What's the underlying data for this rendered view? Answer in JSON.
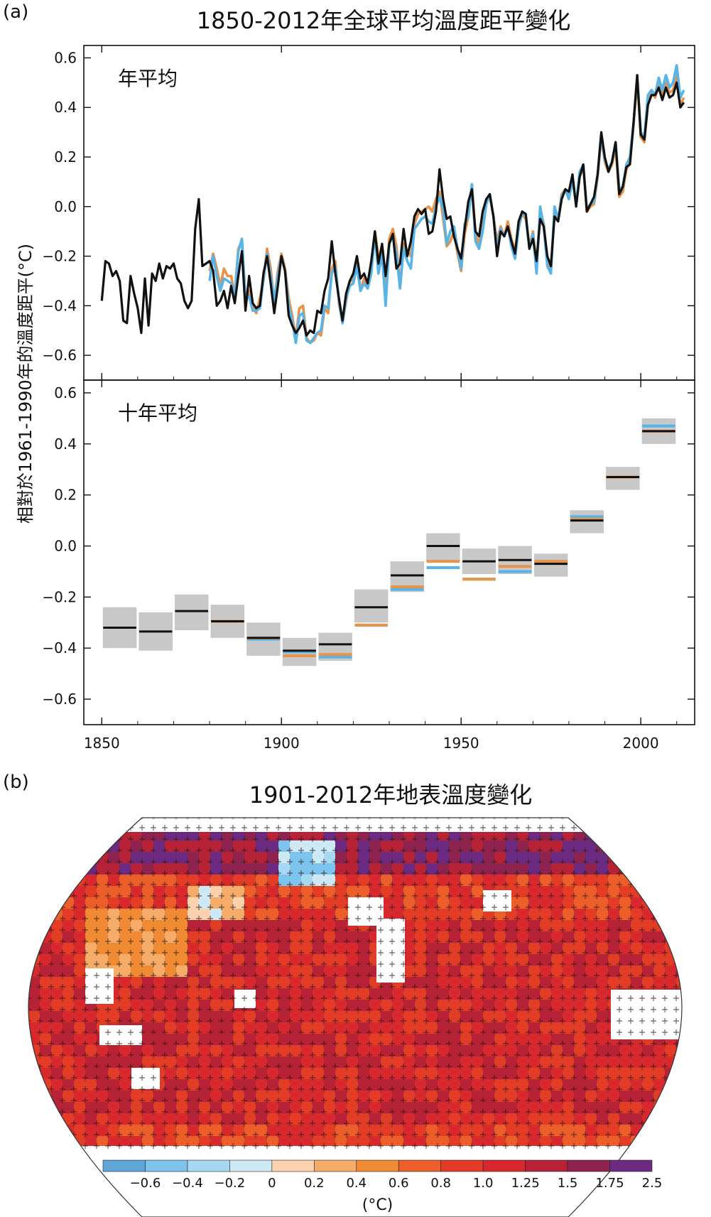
{
  "panel_a": {
    "label": "(a)",
    "title": "1850-2012年全球平均溫度距平變化",
    "ylabel": "相對於1961-1990年的溫度距平(°C)"
  },
  "panel_b": {
    "label": "(b)",
    "title": "1901-2012年地表溫度變化"
  },
  "colors": {
    "black": "#111111",
    "blue": "#56b4e9",
    "orange": "#e8924a",
    "gray_box": "#c8c8c8"
  },
  "chart_data": [
    {
      "type": "line",
      "subtitle": "年平均",
      "xlim": [
        1845,
        2015
      ],
      "ylim": [
        -0.7,
        0.65
      ],
      "xticks": [
        1850,
        1900,
        1950,
        2000
      ],
      "yticks": [
        -0.6,
        -0.4,
        -0.2,
        0.0,
        0.2,
        0.4,
        0.6
      ],
      "ytick_labels": [
        "−0.6",
        "−0.4",
        "−0.2",
        "0.0",
        "0.2",
        "0.4",
        "0.6"
      ],
      "series": [
        {
          "color": "#111111",
          "x_start": 1850,
          "values": [
            -0.38,
            -0.22,
            -0.23,
            -0.28,
            -0.26,
            -0.3,
            -0.46,
            -0.47,
            -0.28,
            -0.35,
            -0.41,
            -0.51,
            -0.29,
            -0.48,
            -0.27,
            -0.3,
            -0.23,
            -0.29,
            -0.24,
            -0.25,
            -0.23,
            -0.29,
            -0.31,
            -0.38,
            -0.41,
            -0.38,
            -0.09,
            0.03,
            -0.24,
            -0.23,
            -0.22,
            -0.26,
            -0.4,
            -0.38,
            -0.34,
            -0.41,
            -0.32,
            -0.39,
            -0.28,
            -0.18,
            -0.42,
            -0.28,
            -0.39,
            -0.41,
            -0.4,
            -0.27,
            -0.2,
            -0.31,
            -0.43,
            -0.32,
            -0.2,
            -0.26,
            -0.44,
            -0.48,
            -0.51,
            -0.49,
            -0.46,
            -0.52,
            -0.5,
            -0.51,
            -0.42,
            -0.43,
            -0.34,
            -0.29,
            -0.14,
            -0.27,
            -0.37,
            -0.46,
            -0.35,
            -0.3,
            -0.27,
            -0.2,
            -0.29,
            -0.27,
            -0.31,
            -0.22,
            -0.1,
            -0.23,
            -0.15,
            -0.28,
            -0.15,
            -0.11,
            -0.25,
            -0.23,
            -0.09,
            -0.2,
            -0.14,
            -0.04,
            -0.01,
            -0.03,
            -0.01,
            -0.11,
            -0.1,
            -0.02,
            0.15,
            0.03,
            -0.05,
            -0.04,
            -0.12,
            -0.17,
            -0.21,
            -0.09,
            0.02,
            0.07,
            -0.1,
            -0.12,
            -0.02,
            0.03,
            0.05,
            -0.04,
            -0.2,
            -0.1,
            -0.12,
            -0.08,
            -0.14,
            -0.19,
            -0.06,
            -0.02,
            -0.03,
            -0.17,
            -0.13,
            -0.22,
            -0.05,
            -0.08,
            -0.2,
            -0.24,
            -0.04,
            -0.06,
            0.03,
            0.07,
            0.06,
            0.13,
            0.0,
            0.12,
            0.17,
            -0.02,
            0.01,
            0.04,
            0.13,
            0.3,
            0.2,
            0.14,
            0.18,
            0.26,
            0.05,
            0.08,
            0.16,
            0.17,
            0.34,
            0.53,
            0.29,
            0.27,
            0.41,
            0.45,
            0.45,
            0.48,
            0.43,
            0.48,
            0.44,
            0.45,
            0.5,
            0.4,
            0.42
          ]
        },
        {
          "color": "#56b4e9",
          "x_start": 1880,
          "values": [
            -0.3,
            -0.2,
            -0.28,
            -0.34,
            -0.29,
            -0.3,
            -0.31,
            -0.36,
            -0.18,
            -0.13,
            -0.38,
            -0.36,
            -0.42,
            -0.42,
            -0.41,
            -0.29,
            -0.19,
            -0.28,
            -0.38,
            -0.28,
            -0.2,
            -0.26,
            -0.4,
            -0.46,
            -0.55,
            -0.44,
            -0.43,
            -0.54,
            -0.55,
            -0.53,
            -0.51,
            -0.5,
            -0.4,
            -0.41,
            -0.27,
            -0.24,
            -0.38,
            -0.47,
            -0.37,
            -0.32,
            -0.31,
            -0.24,
            -0.34,
            -0.31,
            -0.33,
            -0.27,
            -0.11,
            -0.27,
            -0.19,
            -0.4,
            -0.15,
            -0.12,
            -0.19,
            -0.33,
            -0.17,
            -0.22,
            -0.25,
            -0.09,
            -0.07,
            -0.05,
            -0.04,
            -0.06,
            -0.07,
            0.0,
            0.04,
            -0.01,
            -0.15,
            -0.1,
            -0.08,
            -0.17,
            -0.25,
            -0.07,
            -0.04,
            0.09,
            -0.14,
            -0.17,
            -0.1,
            0.01,
            0.05,
            -0.04,
            -0.17,
            -0.09,
            -0.12,
            -0.08,
            -0.16,
            -0.21,
            -0.09,
            -0.02,
            -0.04,
            -0.17,
            -0.11,
            -0.27,
            0.0,
            -0.08,
            -0.24,
            -0.27,
            0.0,
            -0.05,
            0.04,
            0.07,
            0.03,
            0.11,
            0.01,
            0.14,
            0.17,
            -0.01,
            0.01,
            0.02,
            0.13,
            0.29,
            0.19,
            0.15,
            0.18,
            0.26,
            0.07,
            0.08,
            0.17,
            0.2,
            0.34,
            0.53,
            0.3,
            0.28,
            0.45,
            0.47,
            0.45,
            0.52,
            0.47,
            0.53,
            0.48,
            0.5,
            0.57,
            0.44,
            0.47
          ]
        },
        {
          "color": "#e8924a",
          "x_start": 1880,
          "values": [
            -0.26,
            -0.19,
            -0.25,
            -0.32,
            -0.25,
            -0.28,
            -0.28,
            -0.36,
            -0.17,
            -0.14,
            -0.37,
            -0.34,
            -0.4,
            -0.43,
            -0.37,
            -0.3,
            -0.17,
            -0.25,
            -0.39,
            -0.26,
            -0.19,
            -0.25,
            -0.37,
            -0.44,
            -0.53,
            -0.41,
            -0.4,
            -0.53,
            -0.55,
            -0.54,
            -0.51,
            -0.52,
            -0.41,
            -0.43,
            -0.25,
            -0.22,
            -0.39,
            -0.47,
            -0.38,
            -0.3,
            -0.3,
            -0.2,
            -0.34,
            -0.29,
            -0.33,
            -0.24,
            -0.1,
            -0.2,
            -0.19,
            -0.35,
            -0.13,
            -0.09,
            -0.16,
            -0.32,
            -0.15,
            -0.18,
            -0.2,
            -0.07,
            -0.03,
            -0.02,
            -0.01,
            0.0,
            -0.02,
            0.03,
            0.06,
            -0.05,
            -0.16,
            -0.14,
            -0.1,
            -0.19,
            -0.26,
            -0.11,
            -0.04,
            0.09,
            -0.11,
            -0.15,
            -0.07,
            0.02,
            0.04,
            -0.04,
            -0.14,
            -0.08,
            -0.12,
            -0.06,
            -0.13,
            -0.18,
            -0.08,
            -0.03,
            -0.05,
            -0.16,
            -0.1,
            -0.24,
            -0.01,
            -0.07,
            -0.22,
            -0.26,
            -0.01,
            -0.05,
            0.05,
            0.07,
            0.04,
            0.11,
            0.01,
            0.12,
            0.16,
            -0.02,
            0.0,
            0.01,
            0.12,
            0.28,
            0.18,
            0.14,
            0.17,
            0.24,
            0.04,
            0.06,
            0.15,
            0.18,
            0.33,
            0.51,
            0.28,
            0.26,
            0.42,
            0.46,
            0.44,
            0.49,
            0.45,
            0.5,
            0.46,
            0.47,
            0.53,
            0.41,
            0.44
          ]
        }
      ]
    },
    {
      "type": "bar",
      "subtitle": "十年平均",
      "xlim": [
        1845,
        2015
      ],
      "ylim": [
        -0.7,
        0.65
      ],
      "xticks": [
        1850,
        1900,
        1950,
        2000
      ],
      "yticks": [
        -0.6,
        -0.4,
        -0.2,
        0.0,
        0.2,
        0.4,
        0.6
      ],
      "ytick_labels": [
        "−0.6",
        "−0.4",
        "−0.2",
        "0.0",
        "0.2",
        "0.4",
        "0.6"
      ],
      "decades": [
        1850,
        1860,
        1870,
        1880,
        1890,
        1900,
        1910,
        1920,
        1930,
        1940,
        1950,
        1960,
        1970,
        1980,
        1990,
        2000
      ],
      "series": [
        {
          "color": "#111111",
          "values": [
            -0.32,
            -0.335,
            -0.255,
            -0.295,
            -0.36,
            -0.41,
            -0.385,
            -0.24,
            -0.115,
            0.0,
            -0.06,
            -0.055,
            -0.07,
            0.1,
            0.27,
            0.45
          ]
        },
        {
          "color": "#56b4e9",
          "values": [
            null,
            null,
            null,
            -0.295,
            -0.365,
            -0.415,
            -0.435,
            -0.31,
            -0.17,
            -0.085,
            -0.13,
            -0.1,
            -0.065,
            0.115,
            0.27,
            0.47
          ]
        },
        {
          "color": "#e8924a",
          "values": [
            null,
            null,
            null,
            -0.295,
            -0.36,
            -0.43,
            -0.425,
            -0.31,
            -0.16,
            -0.06,
            -0.13,
            -0.08,
            -0.06,
            0.105,
            0.27,
            0.45
          ]
        }
      ],
      "uncertainty": [
        [
          -0.4,
          -0.24
        ],
        [
          -0.41,
          -0.26
        ],
        [
          -0.33,
          -0.19
        ],
        [
          -0.36,
          -0.23
        ],
        [
          -0.43,
          -0.3
        ],
        [
          -0.47,
          -0.36
        ],
        [
          -0.45,
          -0.34
        ],
        [
          -0.3,
          -0.17
        ],
        [
          -0.18,
          -0.06
        ],
        [
          -0.06,
          0.05
        ],
        [
          -0.11,
          -0.01
        ],
        [
          -0.11,
          0.0
        ],
        [
          -0.12,
          -0.03
        ],
        [
          0.05,
          0.14
        ],
        [
          0.22,
          0.31
        ],
        [
          0.4,
          0.5
        ]
      ]
    },
    {
      "type": "heatmap",
      "colorbar": {
        "tick_labels": [
          "−0.6",
          "−0.4",
          "−0.2",
          "0",
          "0.2",
          "0.4",
          "0.6",
          "0.8",
          "1.0",
          "1.25",
          "1.5",
          "1.75",
          "2.5"
        ],
        "colors": [
          "#5ea5d8",
          "#7cc3ee",
          "#a6d8f2",
          "#cde9f6",
          "#fbd2ad",
          "#f5ac68",
          "#f08a33",
          "#ec5e2a",
          "#e23b26",
          "#d6282d",
          "#b72236",
          "#8e2350",
          "#6d2a82"
        ],
        "unit": "(°C)"
      }
    }
  ]
}
